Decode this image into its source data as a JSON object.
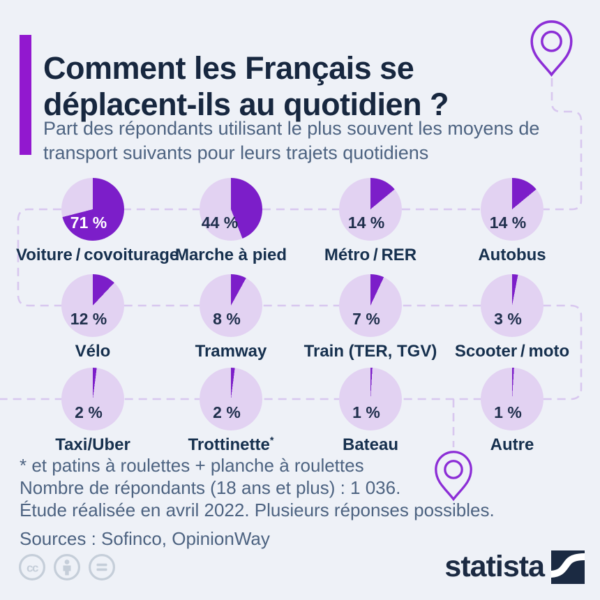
{
  "page": {
    "background": "#eef1f7"
  },
  "header": {
    "title": "Comment les Français se déplacent-ils au quotidien ?",
    "subtitle": "Part des répondants utilisant le plus souvent les moyens de transport suivants pour leurs trajets quotidiens",
    "accent_color": "#9218cf"
  },
  "chart_data": {
    "type": "pie",
    "unit": "%",
    "start": "12-oclock-clockwise",
    "slice_color": "#7c1ec9",
    "remainder_color": "#e2d2f2",
    "items": [
      {
        "label": "Voiture / covoiturage",
        "value": 71
      },
      {
        "label": "Marche à pied",
        "value": 44
      },
      {
        "label": "Métro / RER",
        "value": 14
      },
      {
        "label": "Autobus",
        "value": 14
      },
      {
        "label": "Vélo",
        "value": 12
      },
      {
        "label": "Tramway",
        "value": 8
      },
      {
        "label": "Train (TER, TGV)",
        "value": 7
      },
      {
        "label": "Scooter / moto",
        "value": 3
      },
      {
        "label": "Taxi/Uber",
        "value": 2
      },
      {
        "label": "Trottinette",
        "value": 2,
        "footnote_marker": "*"
      },
      {
        "label": "Bateau",
        "value": 1
      },
      {
        "label": "Autre",
        "value": 1
      }
    ]
  },
  "footnotes": {
    "line1": "* et patins à roulettes + planche à roulettes",
    "line2": "Nombre de répondants (18 ans et plus) : 1 036.",
    "line3": "Étude réalisée en avril 2022. Plusieurs réponses possibles.",
    "sources": "Sources : Sofinco, OpinionWay"
  },
  "branding": {
    "logo_text": "statista",
    "license_icons": [
      "cc",
      "by",
      "nd"
    ]
  },
  "decor": {
    "route_color": "#d8c7ef",
    "pin_color": "#8c2ed6",
    "license_icon_color": "#c5ced9",
    "logo_color": "#1b2a42"
  }
}
